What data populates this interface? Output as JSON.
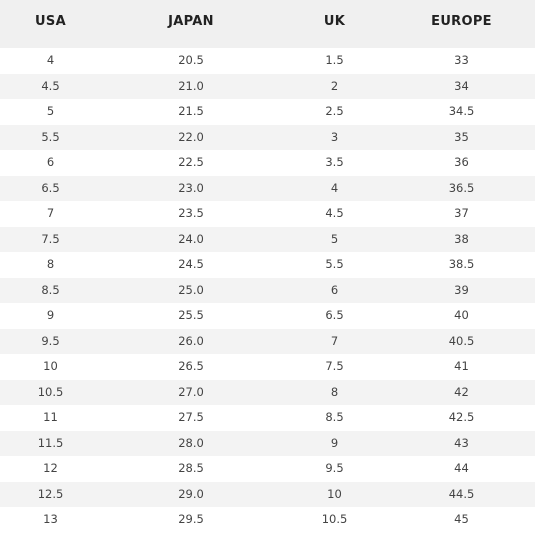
{
  "table": {
    "headers": [
      "USA",
      "JAPAN",
      "UK",
      "EUROPE"
    ],
    "rows": [
      [
        "4",
        "20.5",
        "1.5",
        "33"
      ],
      [
        "4.5",
        "21.0",
        "2",
        "34"
      ],
      [
        "5",
        "21.5",
        "2.5",
        "34.5"
      ],
      [
        "5.5",
        "22.0",
        "3",
        "35"
      ],
      [
        "6",
        "22.5",
        "3.5",
        "36"
      ],
      [
        "6.5",
        "23.0",
        "4",
        "36.5"
      ],
      [
        "7",
        "23.5",
        "4.5",
        "37"
      ],
      [
        "7.5",
        "24.0",
        "5",
        "38"
      ],
      [
        "8",
        "24.5",
        "5.5",
        "38.5"
      ],
      [
        "8.5",
        "25.0",
        "6",
        "39"
      ],
      [
        "9",
        "25.5",
        "6.5",
        "40"
      ],
      [
        "9.5",
        "26.0",
        "7",
        "40.5"
      ],
      [
        "10",
        "26.5",
        "7.5",
        "41"
      ],
      [
        "10.5",
        "27.0",
        "8",
        "42"
      ],
      [
        "11",
        "27.5",
        "8.5",
        "42.5"
      ],
      [
        "11.5",
        "28.0",
        "9",
        "43"
      ],
      [
        "12",
        "28.5",
        "9.5",
        "44"
      ],
      [
        "12.5",
        "29.0",
        "10",
        "44.5"
      ],
      [
        "13",
        "29.5",
        "10.5",
        "45"
      ]
    ]
  },
  "colors": {
    "header_background": "#f0f0f0",
    "stripe_background": "#f3f3f3",
    "text": "#444444"
  }
}
